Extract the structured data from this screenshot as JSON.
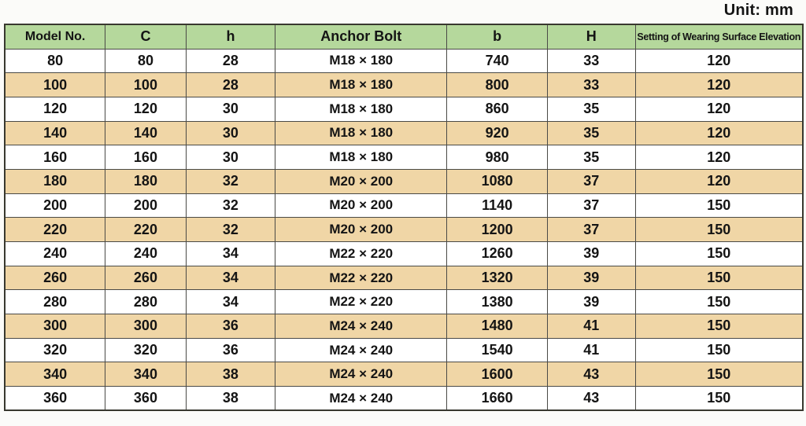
{
  "unit_label": "Unit: mm",
  "colors": {
    "header_bg": "#b5d89c",
    "stripe_bg": "#f0d6a6",
    "row_bg": "#ffffff",
    "border": "#4a4a46",
    "text": "#141414"
  },
  "table": {
    "columns": [
      "Model No.",
      "C",
      "h",
      "Anchor Bolt",
      "b",
      "H",
      "Setting of Wearing Surface Elevation"
    ],
    "column_widths_pct": [
      12.6,
      10.1,
      11.2,
      21.5,
      12.6,
      11.0,
      21.0
    ],
    "rows": [
      [
        "80",
        "80",
        "28",
        "M18 × 180",
        "740",
        "33",
        "120"
      ],
      [
        "100",
        "100",
        "28",
        "M18 × 180",
        "800",
        "33",
        "120"
      ],
      [
        "120",
        "120",
        "30",
        "M18 × 180",
        "860",
        "35",
        "120"
      ],
      [
        "140",
        "140",
        "30",
        "M18 × 180",
        "920",
        "35",
        "120"
      ],
      [
        "160",
        "160",
        "30",
        "M18 × 180",
        "980",
        "35",
        "120"
      ],
      [
        "180",
        "180",
        "32",
        "M20 × 200",
        "1080",
        "37",
        "120"
      ],
      [
        "200",
        "200",
        "32",
        "M20 × 200",
        "1140",
        "37",
        "150"
      ],
      [
        "220",
        "220",
        "32",
        "M20 × 200",
        "1200",
        "37",
        "150"
      ],
      [
        "240",
        "240",
        "34",
        "M22 × 220",
        "1260",
        "39",
        "150"
      ],
      [
        "260",
        "260",
        "34",
        "M22 × 220",
        "1320",
        "39",
        "150"
      ],
      [
        "280",
        "280",
        "34",
        "M22 × 220",
        "1380",
        "39",
        "150"
      ],
      [
        "300",
        "300",
        "36",
        "M24 × 240",
        "1480",
        "41",
        "150"
      ],
      [
        "320",
        "320",
        "36",
        "M24 × 240",
        "1540",
        "41",
        "150"
      ],
      [
        "340",
        "340",
        "38",
        "M24 × 240",
        "1600",
        "43",
        "150"
      ],
      [
        "360",
        "360",
        "38",
        "M24 × 240",
        "1660",
        "43",
        "150"
      ]
    ]
  }
}
